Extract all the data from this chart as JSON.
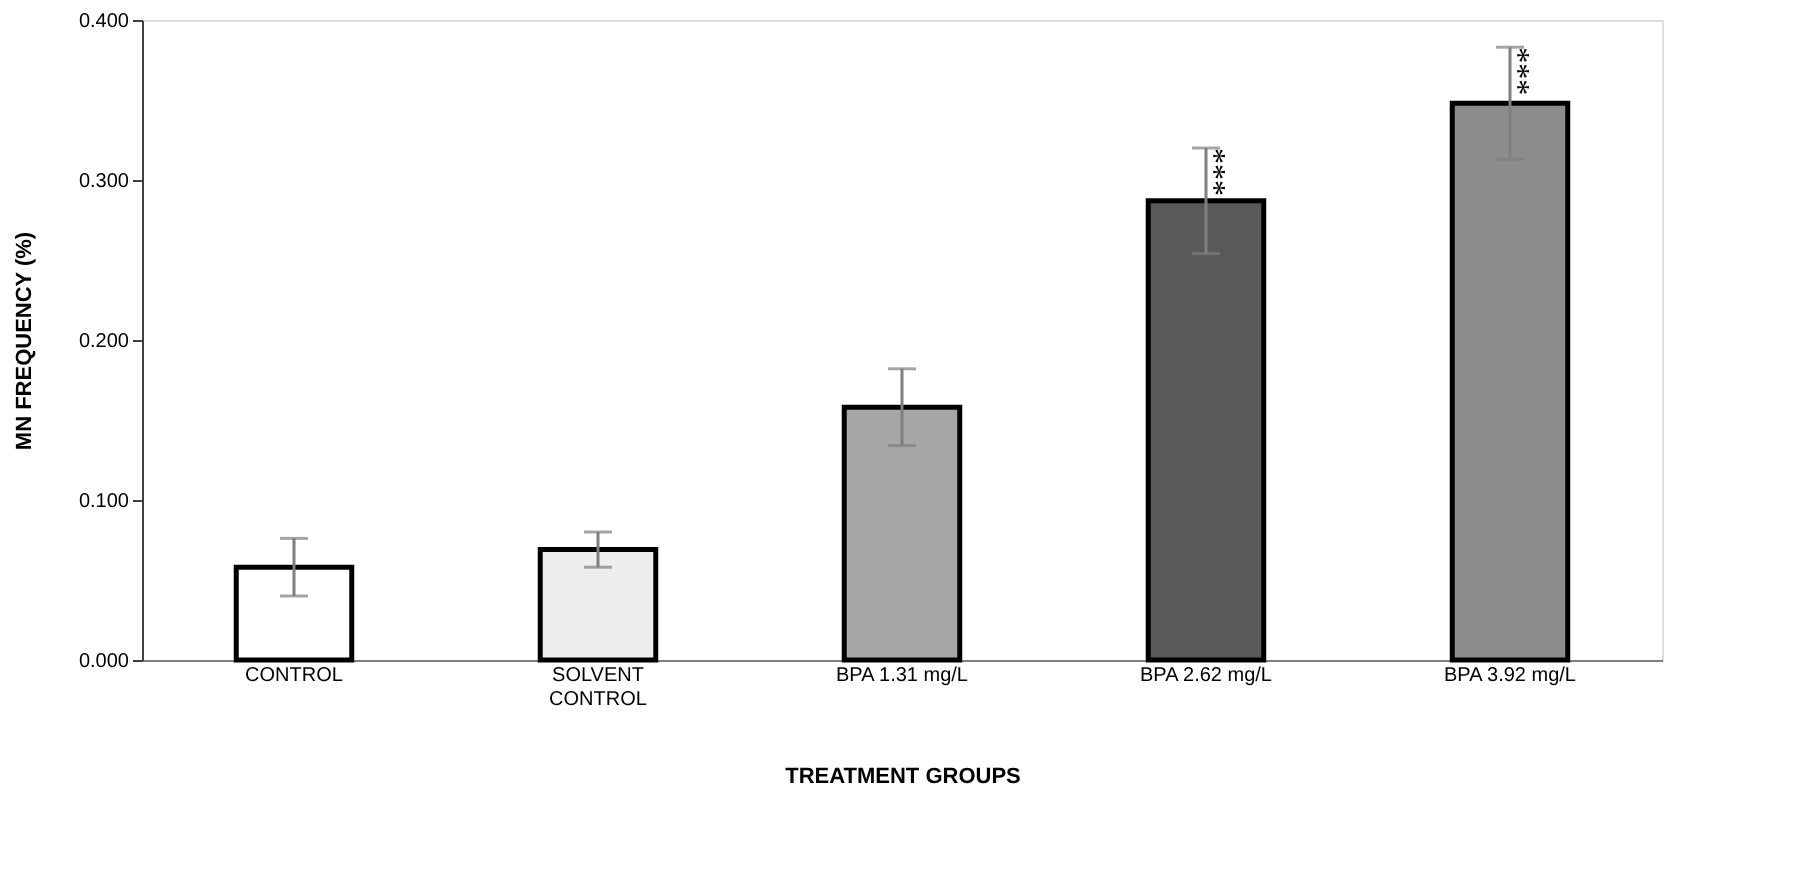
{
  "chart_data": {
    "type": "bar",
    "xlabel": "TREATMENT GROUPS",
    "ylabel": "MN FREQUENCY (%)",
    "categories": [
      "CONTROL",
      "SOLVENT CONTROL",
      "BPA 1.31 mg/L",
      "BPA 2.62 mg/L",
      "BPA 3.92 mg/L"
    ],
    "values": [
      0.058,
      0.069,
      0.158,
      0.287,
      0.348
    ],
    "errors": [
      0.018,
      0.011,
      0.024,
      0.033,
      0.035
    ],
    "colors": [
      "#ffffff",
      "#eeeeee",
      "#a6a6a6",
      "#595959",
      "#8c8c8c"
    ],
    "ylim": [
      0,
      0.4
    ],
    "yticks": [
      {
        "value": 0,
        "label": "0.000"
      },
      {
        "value": 0.1,
        "label": "0.100"
      },
      {
        "value": 0.2,
        "label": "0.200"
      },
      {
        "value": 0.3,
        "label": "0.300"
      },
      {
        "value": 0.4,
        "label": "0.400"
      }
    ],
    "annotations": [
      {
        "text": "***",
        "x": "BPA 2.62 mg/L",
        "y": 0.32
      },
      {
        "text": "***",
        "x": "BPA 3.92 mg/L",
        "y": 0.383
      }
    ],
    "grid": false
  }
}
